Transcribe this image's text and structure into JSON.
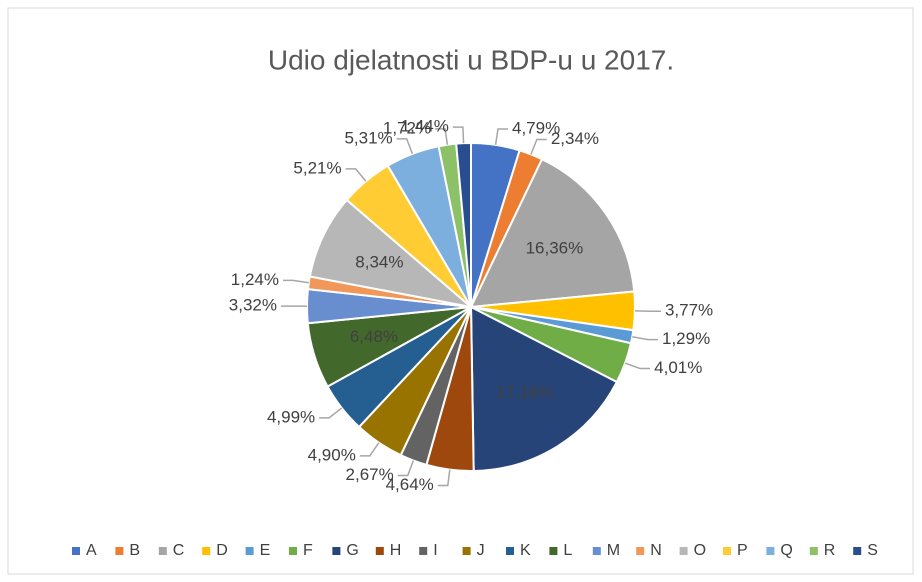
{
  "chart_data": {
    "type": "pie",
    "title": "Udio djelatnosti u BDP-u u 2017.",
    "categories": [
      "A",
      "B",
      "C",
      "D",
      "E",
      "F",
      "G",
      "H",
      "I",
      "J",
      "K",
      "L",
      "M",
      "N",
      "O",
      "P",
      "Q",
      "R",
      "S"
    ],
    "values": [
      4.79,
      2.34,
      16.36,
      3.77,
      1.29,
      4.01,
      17.18,
      4.64,
      2.67,
      4.9,
      4.99,
      6.48,
      3.32,
      1.24,
      8.34,
      5.21,
      5.31,
      1.72,
      1.44
    ],
    "value_labels": [
      "4,79%",
      "2,34%",
      "16,36%",
      "3,77%",
      "1,29%",
      "4,01%",
      "17,18%",
      "4,64%",
      "2,67%",
      "4,90%",
      "4,99%",
      "6,48%",
      "3,32%",
      "1,24%",
      "8,34%",
      "5,21%",
      "5,31%",
      "1,72%",
      "1,44%"
    ],
    "colors": [
      "#4472c4",
      "#ed7d31",
      "#a5a5a5",
      "#ffc000",
      "#5b9bd5",
      "#70ad47",
      "#264478",
      "#9e480e",
      "#636363",
      "#997300",
      "#255e91",
      "#43682b",
      "#698ed0",
      "#f1975a",
      "#b7b7b7",
      "#ffcd33",
      "#7cafdd",
      "#8cc168",
      "#2a4d8f"
    ],
    "legend": "bottom"
  }
}
